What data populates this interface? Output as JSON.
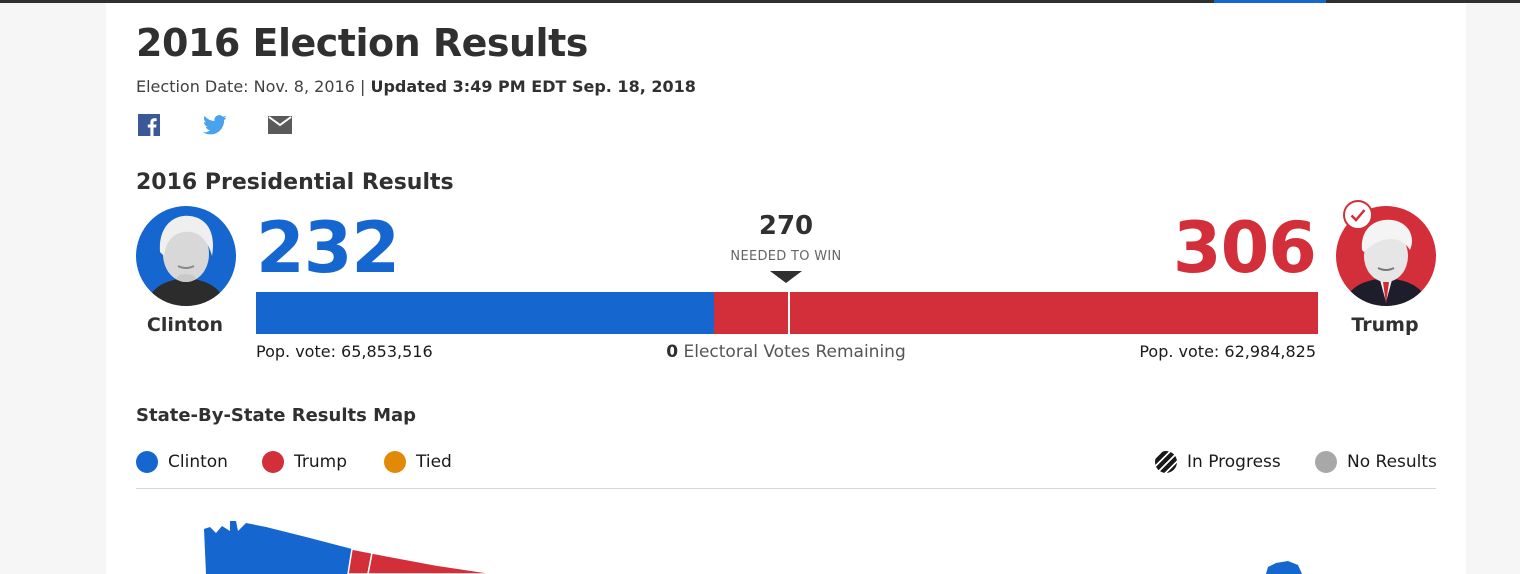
{
  "page": {
    "title": "2016 Election Results",
    "election_date": "Election Date: Nov. 8, 2016 |",
    "updated": "Updated 3:49 PM EDT Sep. 18, 2018"
  },
  "share": [
    {
      "icon": "facebook-icon"
    },
    {
      "icon": "twitter-icon"
    },
    {
      "icon": "email-icon"
    }
  ],
  "presidential": {
    "section_title": "2016 Presidential Results",
    "needed_number": "270",
    "needed_label": "NEEDED TO WIN",
    "remaining_count": "0",
    "remaining_label": "Electoral Votes Remaining",
    "candidates": {
      "clinton": {
        "name": "Clinton",
        "electoral_votes": "232",
        "pop_vote": "Pop. vote: 65,853,516",
        "color": "#1666cf",
        "ev_share": 0.4312
      },
      "trump": {
        "name": "Trump",
        "electoral_votes": "306",
        "pop_vote": "Pop. vote: 62,984,825",
        "color": "#d32f3a",
        "winner": true
      }
    },
    "needed_share": 0.5019
  },
  "map": {
    "title": "State-By-State Results Map",
    "legend": [
      {
        "label": "Clinton",
        "color": "#1666cf"
      },
      {
        "label": "Trump",
        "color": "#d32f3a"
      },
      {
        "label": "Tied",
        "color": "#e08a07"
      },
      {
        "label": "In Progress",
        "color": "#1a1a1a"
      },
      {
        "label": "No Results",
        "color": "#a8a8a8"
      }
    ]
  }
}
